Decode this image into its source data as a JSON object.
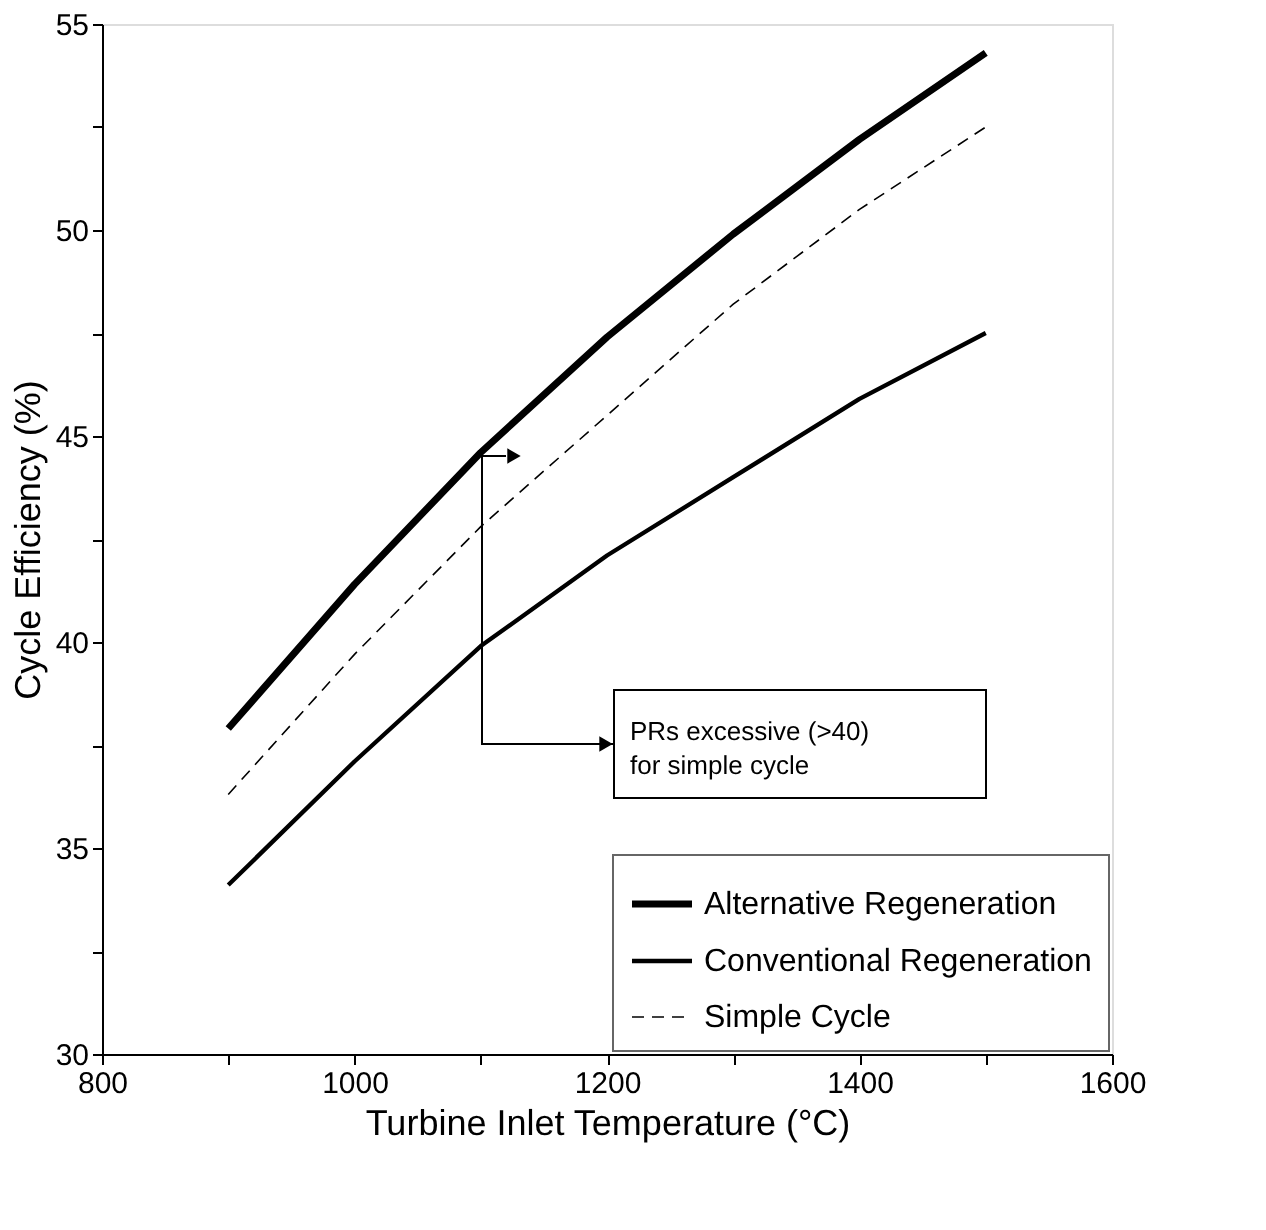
{
  "chart_data": {
    "type": "line",
    "xlabel": "Turbine Inlet Temperature (°C)",
    "ylabel": "Cycle Efficiency (%)",
    "x": [
      900,
      1000,
      1100,
      1200,
      1300,
      1400,
      1500
    ],
    "series": [
      {
        "name": "Alternative Regeneration",
        "color": "#000000",
        "line_style": "solid",
        "values": [
          37.9,
          41.4,
          44.6,
          47.4,
          49.9,
          52.2,
          54.3
        ]
      },
      {
        "name": "Conventional Regeneration",
        "color": "#000000",
        "line_style": "solid",
        "values": [
          34.1,
          37.1,
          39.9,
          42.1,
          44.0,
          45.9,
          47.5
        ]
      },
      {
        "name": "Simple Cycle",
        "color": "#000000",
        "line_style": "dashed",
        "values": [
          36.3,
          39.7,
          42.8,
          45.5,
          48.2,
          50.5,
          52.5
        ]
      }
    ],
    "xlim": [
      800,
      1600
    ],
    "ylim": [
      30,
      55
    ],
    "xticks": [
      800,
      {
        "value": 900,
        "label": null
      },
      1000,
      {
        "value": 1100,
        "label": null
      },
      1200,
      {
        "value": 1300,
        "label": null
      },
      1400,
      {
        "value": 1500,
        "label": null
      },
      1600
    ],
    "yticks": [
      30,
      {
        "value": 32.5,
        "label": null
      },
      35,
      {
        "value": 37.5,
        "label": null
      },
      40,
      {
        "value": 42.5,
        "label": null
      },
      45,
      {
        "value": 47.5,
        "label": null
      },
      50,
      {
        "value": 52.5,
        "label": null
      },
      55
    ],
    "annotations": [
      "PRs excessive (>40) for simple cycle"
    ],
    "grid": false,
    "legend": "bottom right",
    "marker": "none"
  }
}
